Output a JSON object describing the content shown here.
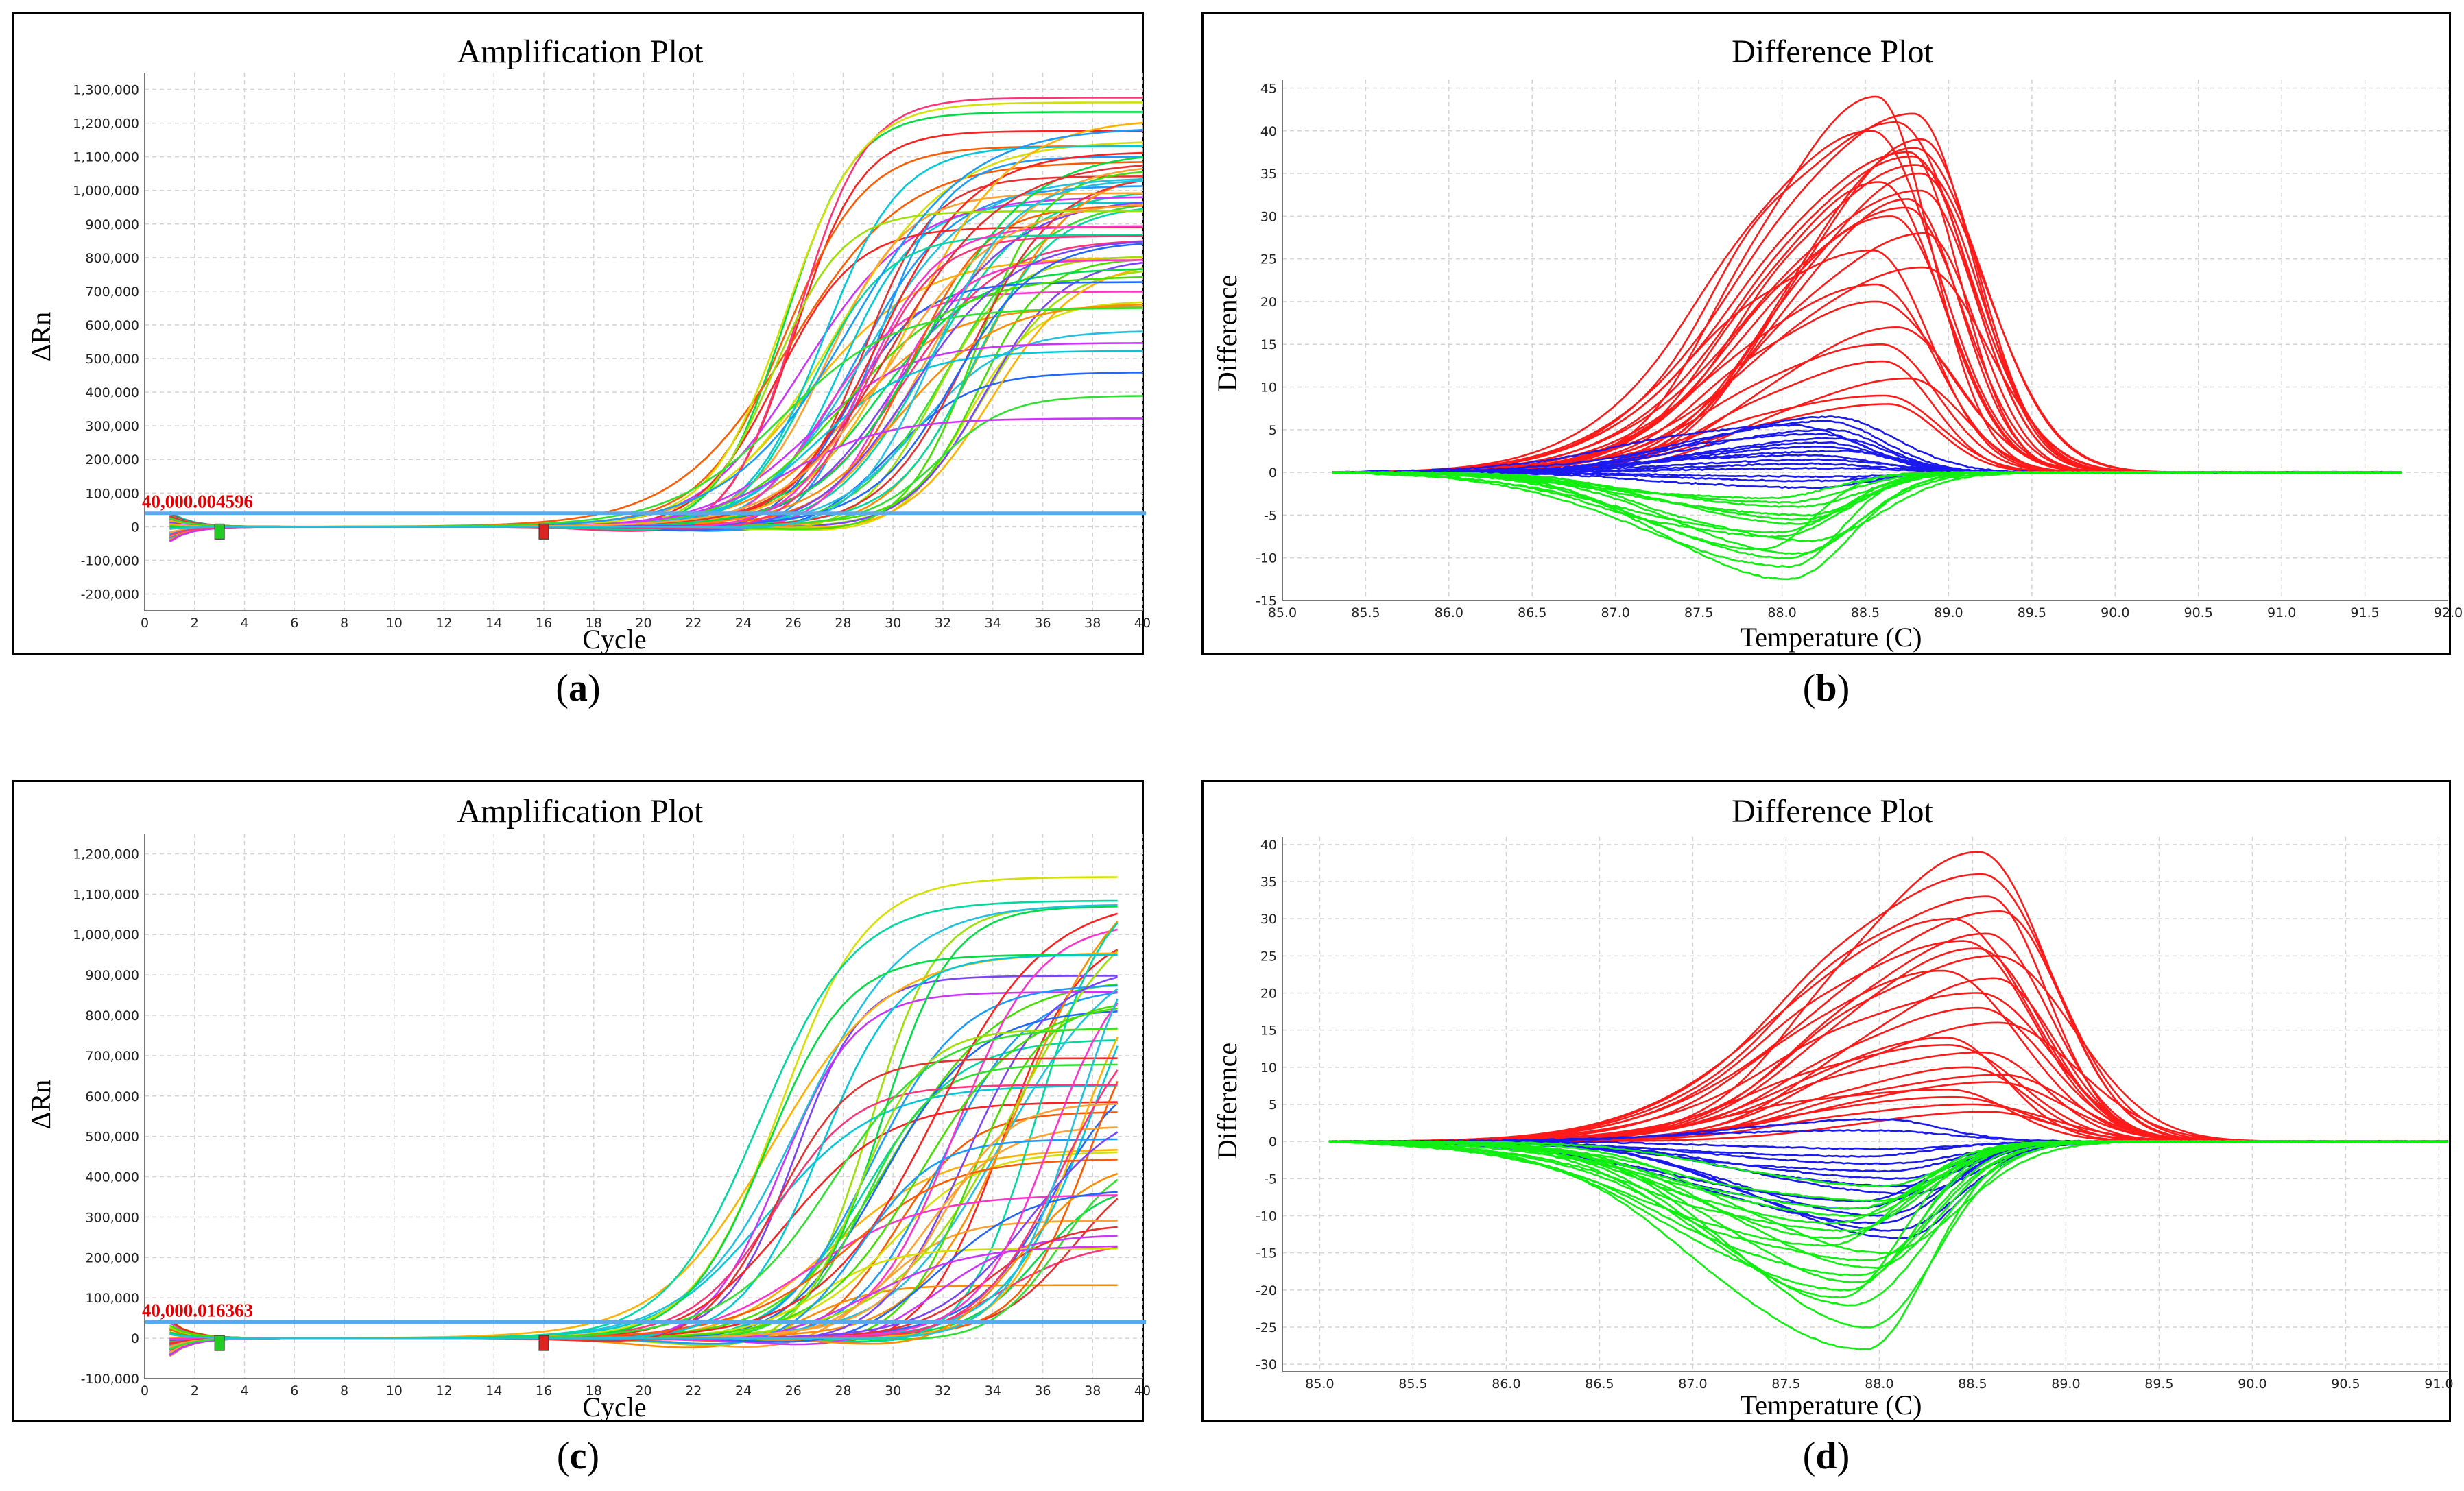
{
  "chart_data": [
    {
      "id": "a",
      "type": "line",
      "title": "Amplification Plot",
      "xlabel": "Cycle",
      "ylabel": "ΔRn",
      "xlim": [
        0,
        40
      ],
      "ylim": [
        -250000,
        1350000
      ],
      "xticks": [
        0,
        2,
        4,
        6,
        8,
        10,
        12,
        14,
        16,
        18,
        20,
        22,
        24,
        26,
        28,
        30,
        32,
        34,
        36,
        38,
        40
      ],
      "yticks": [
        -200000,
        -100000,
        0,
        100000,
        200000,
        300000,
        400000,
        500000,
        600000,
        700000,
        800000,
        900000,
        1000000,
        1100000,
        1200000,
        1300000
      ],
      "ytick_labels": [
        "-200,000",
        "-100,000",
        "0",
        "100,000",
        "200,000",
        "300,000",
        "400,000",
        "500,000",
        "600,000",
        "700,000",
        "800,000",
        "900,000",
        "1,000,000",
        "1,100,000",
        "1,200,000",
        "1,300,000"
      ],
      "threshold": 40000,
      "threshold_label": "40,000.004596",
      "baseline_markers": [
        {
          "x": 3,
          "color": "#22cc22"
        },
        {
          "x": 16,
          "color": "#dd2222"
        }
      ],
      "series_summary": {
        "count": 60,
        "ct_range": [
          23,
          32
        ],
        "plateau_range": [
          280000,
          1280000
        ],
        "start_cycle": 1,
        "end_cycle": 40
      },
      "caption": "a"
    },
    {
      "id": "b",
      "type": "line",
      "title": "Difference Plot",
      "xlabel": "Temperature (C)",
      "ylabel": "Difference",
      "xlim": [
        85.0,
        92.0
      ],
      "ylim": [
        -15,
        46
      ],
      "xticks": [
        85.0,
        85.5,
        86.0,
        86.5,
        87.0,
        87.5,
        88.0,
        88.5,
        89.0,
        89.5,
        90.0,
        90.5,
        91.0,
        91.5,
        92.0
      ],
      "xtick_labels": [
        "85.0",
        "85.5",
        "86.0",
        "86.5",
        "87.0",
        "87.5",
        "88.0",
        "88.5",
        "89.0",
        "89.5",
        "90.0",
        "90.5",
        "91.0",
        "91.5",
        "92.0"
      ],
      "yticks": [
        -15,
        -10,
        -5,
        0,
        5,
        10,
        15,
        20,
        25,
        30,
        35,
        40,
        45
      ],
      "ytick_labels": [
        "-15",
        "-10",
        "-5",
        "0",
        "5",
        "10",
        "15",
        "20",
        "25",
        "30",
        "35",
        "40",
        "45"
      ],
      "x_start": 85.3,
      "x_end": 91.72,
      "groups": [
        {
          "name": "red",
          "color": "#ff1a1a",
          "peaks": [
            44,
            42,
            41,
            40,
            39,
            38,
            37.5,
            37,
            36,
            35,
            34,
            33,
            32,
            31,
            30,
            28,
            26,
            24,
            22,
            20,
            17,
            15,
            13,
            11,
            9,
            8
          ],
          "peak_x": 88.7
        },
        {
          "name": "blue",
          "color": "#1a1aee",
          "peaks": [
            6.5,
            6,
            5.5,
            5,
            4.5,
            4,
            3.5,
            3,
            2.5,
            2,
            1.5,
            1,
            0.5,
            -0.5,
            -1,
            -1.8
          ],
          "peak_x": 88.2
        },
        {
          "name": "green",
          "color": "#11ee11",
          "peaks": [
            -12.5,
            -11,
            -10,
            -9.5,
            -9,
            -8,
            -7.5,
            -7,
            -6,
            -5.5,
            -5,
            -4,
            -3.5,
            -3
          ],
          "peak_x": 88.0
        }
      ],
      "caption": "b"
    },
    {
      "id": "c",
      "type": "line",
      "title": "Amplification Plot",
      "xlabel": "Cycle",
      "ylabel": "ΔRn",
      "xlim": [
        0,
        40
      ],
      "ylim": [
        -100000,
        1250000
      ],
      "xticks": [
        0,
        2,
        4,
        6,
        8,
        10,
        12,
        14,
        16,
        18,
        20,
        22,
        24,
        26,
        28,
        30,
        32,
        34,
        36,
        38,
        40
      ],
      "yticks": [
        -100000,
        0,
        100000,
        200000,
        300000,
        400000,
        500000,
        600000,
        700000,
        800000,
        900000,
        1000000,
        1100000,
        1200000
      ],
      "ytick_labels": [
        "-100,000",
        "0",
        "100,000",
        "200,000",
        "300,000",
        "400,000",
        "500,000",
        "600,000",
        "700,000",
        "800,000",
        "900,000",
        "1,000,000",
        "1,100,000",
        "1,200,000"
      ],
      "threshold": 40000,
      "threshold_label": "40,000.016363",
      "baseline_markers": [
        {
          "x": 3,
          "color": "#22cc22"
        },
        {
          "x": 16,
          "color": "#dd2222"
        }
      ],
      "series_summary": {
        "count": 60,
        "ct_range": [
          22,
          36
        ],
        "plateau_range": [
          30000,
          1200000
        ],
        "start_cycle": 1,
        "end_cycle": 39
      },
      "caption": "c"
    },
    {
      "id": "d",
      "type": "line",
      "title": "Difference Plot",
      "xlabel": "Temperature (C)",
      "ylabel": "Difference",
      "xlim": [
        84.8,
        91.05
      ],
      "ylim": [
        -31,
        41
      ],
      "xticks": [
        85.0,
        85.5,
        86.0,
        86.5,
        87.0,
        87.5,
        88.0,
        88.5,
        89.0,
        89.5,
        90.0,
        90.5,
        91.0
      ],
      "xtick_labels": [
        "85.0",
        "85.5",
        "86.0",
        "86.5",
        "87.0",
        "87.5",
        "88.0",
        "88.5",
        "89.0",
        "89.5",
        "90.0",
        "90.5",
        "91.0"
      ],
      "yticks": [
        -30,
        -25,
        -20,
        -15,
        -10,
        -5,
        0,
        5,
        10,
        15,
        20,
        25,
        30,
        35,
        40
      ],
      "ytick_labels": [
        "-30",
        "-25",
        "-20",
        "-15",
        "-10",
        "-5",
        "0",
        "5",
        "10",
        "15",
        "20",
        "25",
        "30",
        "35",
        "40"
      ],
      "x_start": 85.05,
      "x_end": 91.05,
      "groups": [
        {
          "name": "red",
          "color": "#ff1a1a",
          "peaks": [
            39,
            36,
            33,
            31,
            30,
            28,
            27,
            26,
            25,
            23,
            22,
            20,
            18,
            16,
            14,
            13,
            12,
            10,
            9,
            8,
            7,
            6,
            5,
            4
          ],
          "peak_x": 88.5
        },
        {
          "name": "blue",
          "color": "#1a1aee",
          "peaks": [
            3,
            1.5,
            -1,
            -2,
            -3,
            -4,
            -5,
            -6,
            -7,
            -8,
            -9,
            -10,
            -11,
            -12,
            -13
          ],
          "peak_x": 88.0
        },
        {
          "name": "green",
          "color": "#11ee11",
          "peaks": [
            -28,
            -25,
            -22,
            -21,
            -20,
            -19,
            -18,
            -17,
            -16,
            -15,
            -14,
            -13,
            -12,
            -11,
            -10,
            -9,
            -8,
            -6
          ],
          "peak_x": 87.85
        }
      ],
      "caption": "d"
    }
  ]
}
